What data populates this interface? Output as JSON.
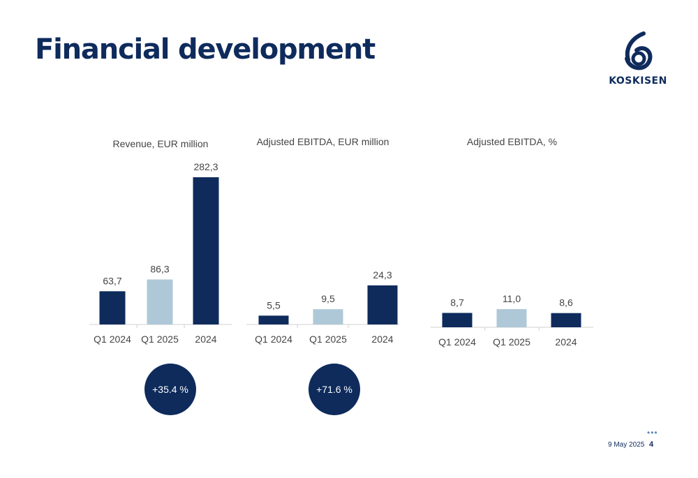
{
  "title": "Financial development",
  "logo": {
    "text": "KOSKISEN",
    "icon": "koskisen-swirl-icon"
  },
  "colors": {
    "dark": "#0e2b5c",
    "light": "#aec8d8",
    "axis": "#d0d0d0",
    "text": "#444444"
  },
  "chart_data": [
    {
      "type": "bar",
      "title": "Revenue, EUR million",
      "categories": [
        "Q1 2024",
        "Q1 2025",
        "2024"
      ],
      "values": [
        63.7,
        86.3,
        282.3
      ],
      "value_labels": [
        "63,7",
        "86,3",
        "282,3"
      ],
      "highlight": [
        false,
        true,
        false
      ],
      "ylim": [
        0,
        282.3
      ]
    },
    {
      "type": "bar",
      "title": "Adjusted EBITDA, EUR million",
      "categories": [
        "Q1 2024",
        "Q1 2025",
        "2024"
      ],
      "values": [
        5.5,
        9.5,
        24.3
      ],
      "value_labels": [
        "5,5",
        "9,5",
        "24,3"
      ],
      "highlight": [
        false,
        true,
        false
      ],
      "ylim": [
        0,
        24.3
      ]
    },
    {
      "type": "bar",
      "title": "Adjusted EBITDA, %",
      "categories": [
        "Q1 2024",
        "Q1 2025",
        "2024"
      ],
      "values": [
        8.7,
        11.0,
        8.6
      ],
      "value_labels": [
        "8,7",
        "11,0",
        "8,6"
      ],
      "highlight": [
        false,
        true,
        false
      ],
      "ylim": [
        0,
        11.0
      ]
    }
  ],
  "badges": [
    "+35.4 %",
    "+71.6 %"
  ],
  "footer": {
    "date": "9 May 2025",
    "page": "4",
    "dots": "•••"
  }
}
